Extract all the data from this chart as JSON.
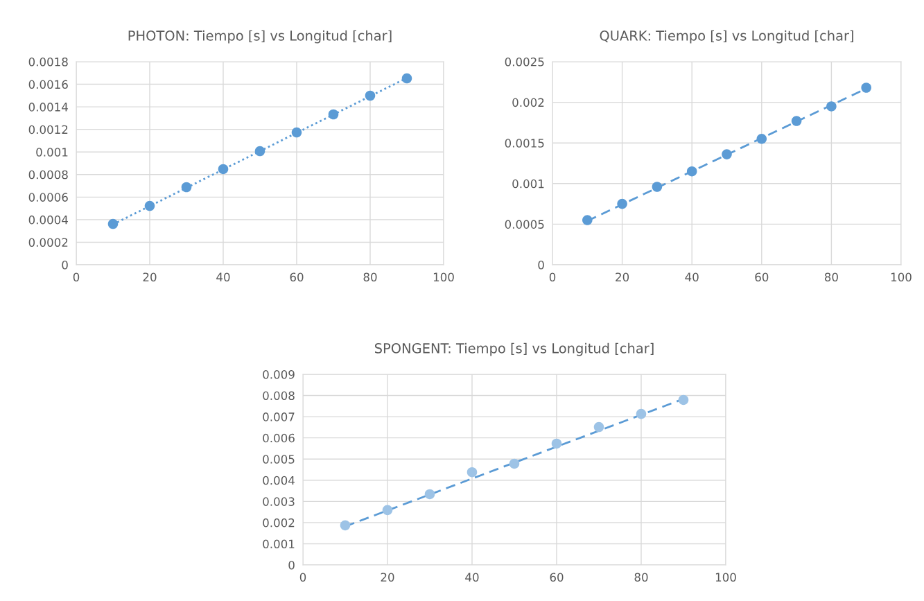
{
  "chart_data": [
    {
      "type": "scatter",
      "title": "PHOTON: Tiempo [s] vs Longitud [char]",
      "xlim": [
        0,
        100
      ],
      "xticks": [
        0,
        20,
        40,
        60,
        80,
        100
      ],
      "ylim": [
        0,
        0.0018
      ],
      "yticks": [
        0,
        0.0002,
        0.0004,
        0.0006,
        0.0008,
        0.001,
        0.0012,
        0.0014,
        0.0016,
        0.0018
      ],
      "grid": true,
      "legend": false,
      "series": [
        {
          "type": "scatter",
          "color": "#5b9bd5",
          "marker": "circle",
          "x": [
            10,
            20,
            30,
            40,
            50,
            60,
            70,
            80,
            90
          ],
          "values": [
            0.000362,
            0.000522,
            0.000688,
            0.000848,
            0.001007,
            0.001173,
            0.001333,
            0.001499,
            0.001652
          ]
        },
        {
          "type": "line",
          "color": "#5b9bd5",
          "line_style": "dotted",
          "marker": "none",
          "x": [
            10,
            90
          ],
          "values": [
            0.000358,
            0.001656
          ]
        }
      ]
    },
    {
      "type": "scatter",
      "title": "QUARK: Tiempo [s] vs Longitud [char]",
      "xlim": [
        0,
        100
      ],
      "xticks": [
        0,
        20,
        40,
        60,
        80,
        100
      ],
      "ylim": [
        0,
        0.0025
      ],
      "yticks": [
        0,
        0.0005,
        0.001,
        0.0015,
        0.002,
        0.0025
      ],
      "grid": true,
      "legend": false,
      "series": [
        {
          "type": "scatter",
          "color": "#5b9bd5",
          "marker": "circle",
          "x": [
            10,
            20,
            30,
            40,
            50,
            60,
            70,
            80,
            90
          ],
          "values": [
            0.00055,
            0.00075,
            0.00096,
            0.00115,
            0.00136,
            0.00155,
            0.00177,
            0.00195,
            0.00218
          ]
        },
        {
          "type": "line",
          "color": "#5b9bd5",
          "line_style": "dashed",
          "marker": "none",
          "x": [
            10,
            90
          ],
          "values": [
            0.00054,
            0.00217
          ]
        }
      ]
    },
    {
      "type": "scatter",
      "title": "SPONGENT: Tiempo [s] vs Longitud [char]",
      "xlim": [
        0,
        100
      ],
      "xticks": [
        0,
        20,
        40,
        60,
        80,
        100
      ],
      "ylim": [
        0,
        0.009
      ],
      "yticks": [
        0,
        0.001,
        0.002,
        0.003,
        0.004,
        0.005,
        0.006,
        0.007,
        0.008,
        0.009
      ],
      "grid": true,
      "legend": false,
      "series": [
        {
          "type": "scatter",
          "color": "#9dc3e6",
          "marker": "circle",
          "x": [
            10,
            20,
            30,
            40,
            50,
            60,
            70,
            80,
            90
          ],
          "values": [
            0.00187,
            0.00259,
            0.00334,
            0.00438,
            0.00478,
            0.00573,
            0.00651,
            0.00713,
            0.00779
          ]
        },
        {
          "type": "line",
          "color": "#5b9bd5",
          "line_style": "dashed",
          "marker": "none",
          "x": [
            10,
            90
          ],
          "values": [
            0.00182,
            0.00784
          ]
        }
      ]
    }
  ]
}
